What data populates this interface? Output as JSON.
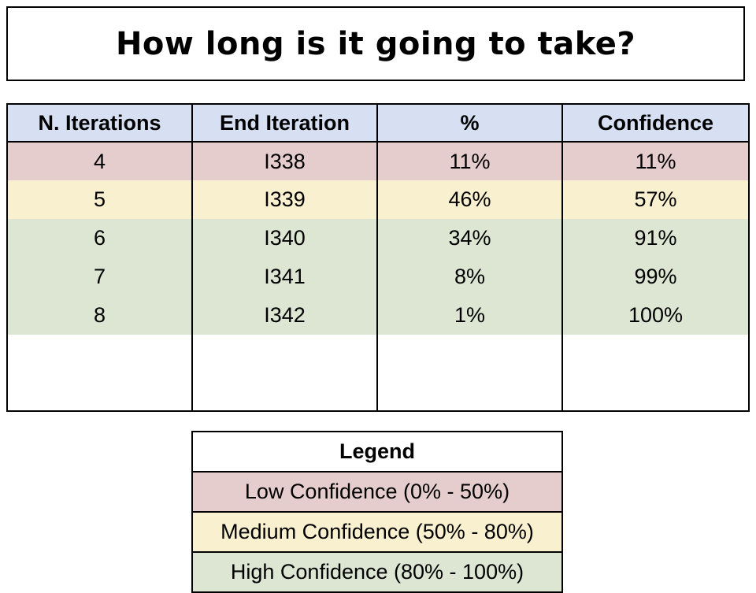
{
  "title": "How long is it going to take?",
  "table": {
    "headers": [
      "N. Iterations",
      "End Iteration",
      "%",
      "Confidence"
    ],
    "rows": [
      {
        "iterations": "4",
        "end_iteration": "I338",
        "percent": "11%",
        "confidence": "11%",
        "level": "low"
      },
      {
        "iterations": "5",
        "end_iteration": "I339",
        "percent": "46%",
        "confidence": "57%",
        "level": "medium"
      },
      {
        "iterations": "6",
        "end_iteration": "I340",
        "percent": "34%",
        "confidence": "91%",
        "level": "high"
      },
      {
        "iterations": "7",
        "end_iteration": "I341",
        "percent": "8%",
        "confidence": "99%",
        "level": "high"
      },
      {
        "iterations": "8",
        "end_iteration": "I342",
        "percent": "1%",
        "confidence": "100%",
        "level": "high"
      }
    ]
  },
  "legend": {
    "title": "Legend",
    "items": [
      {
        "label": "Low Confidence (0% - 50%)",
        "level": "low"
      },
      {
        "label": "Medium Confidence (50% - 80%)",
        "level": "medium"
      },
      {
        "label": "High Confidence (80% - 100%)",
        "level": "high"
      }
    ]
  },
  "colors": {
    "header": "#d6e0f2",
    "low": "#e6cdcd",
    "medium": "#f8f0cf",
    "high": "#dde6d3"
  }
}
